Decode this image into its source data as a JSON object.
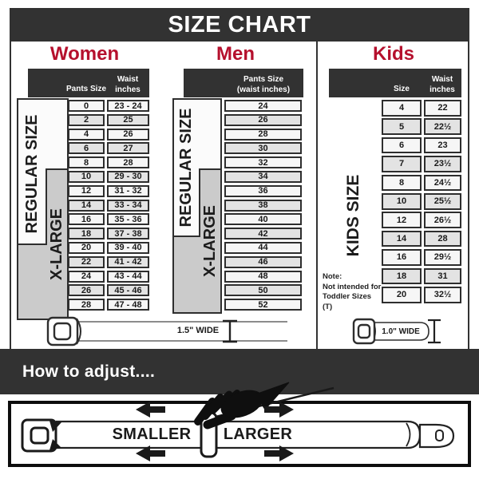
{
  "header": {
    "title": "SIZE CHART"
  },
  "colors": {
    "accent_red": "#b5102d",
    "bar_dark": "#323232",
    "xlarge_gray": "#cbcbcb",
    "shaded_row": "#e3e3e3"
  },
  "women": {
    "title": "Women",
    "col_headers": {
      "size": "Pants Size",
      "waist_line1": "Waist",
      "waist_line2": "inches"
    },
    "regular_label": "REGULAR SIZE",
    "xlarge_label": "X-LARGE",
    "rows": [
      {
        "size": "0",
        "waist": "23 - 24"
      },
      {
        "size": "2",
        "waist": "25"
      },
      {
        "size": "4",
        "waist": "26"
      },
      {
        "size": "6",
        "waist": "27"
      },
      {
        "size": "8",
        "waist": "28"
      },
      {
        "size": "10",
        "waist": "29 - 30"
      },
      {
        "size": "12",
        "waist": "31 - 32"
      },
      {
        "size": "14",
        "waist": "33 - 34"
      },
      {
        "size": "16",
        "waist": "35 - 36"
      },
      {
        "size": "18",
        "waist": "37 - 38"
      },
      {
        "size": "20",
        "waist": "39 - 40"
      },
      {
        "size": "22",
        "waist": "41 - 42"
      },
      {
        "size": "24",
        "waist": "43 - 44"
      },
      {
        "size": "26",
        "waist": "45 - 46"
      },
      {
        "size": "28",
        "waist": "47 - 48"
      }
    ],
    "belt_width_label": "1.5\" WIDE"
  },
  "men": {
    "title": "Men",
    "col_headers": {
      "line1": "Pants Size",
      "line2": "(waist inches)"
    },
    "regular_label": "REGULAR SIZE",
    "xlarge_label": "X-LARGE",
    "rows": [
      "24",
      "26",
      "28",
      "30",
      "32",
      "34",
      "36",
      "38",
      "40",
      "42",
      "44",
      "46",
      "48",
      "50",
      "52"
    ]
  },
  "kids": {
    "title": "Kids",
    "col_headers": {
      "size": "Size",
      "waist_line1": "Waist",
      "waist_line2": "inches"
    },
    "side_label": "KIDS SIZE",
    "note": {
      "line1": "Note:",
      "line2": "Not intended for",
      "line3": "Toddler Sizes (T)"
    },
    "rows": [
      {
        "size": "4",
        "waist": "22"
      },
      {
        "size": "5",
        "waist": "22½"
      },
      {
        "size": "6",
        "waist": "23"
      },
      {
        "size": "7",
        "waist": "23½"
      },
      {
        "size": "8",
        "waist": "24½"
      },
      {
        "size": "10",
        "waist": "25½"
      },
      {
        "size": "12",
        "waist": "26½"
      },
      {
        "size": "14",
        "waist": "28"
      },
      {
        "size": "16",
        "waist": "29½"
      },
      {
        "size": "18",
        "waist": "31"
      },
      {
        "size": "20",
        "waist": "32½"
      }
    ],
    "belt_width_label": "1.0\" WIDE"
  },
  "adjust": {
    "title": "How to adjust....",
    "smaller_label": "SMALLER",
    "larger_label": "LARGER"
  }
}
